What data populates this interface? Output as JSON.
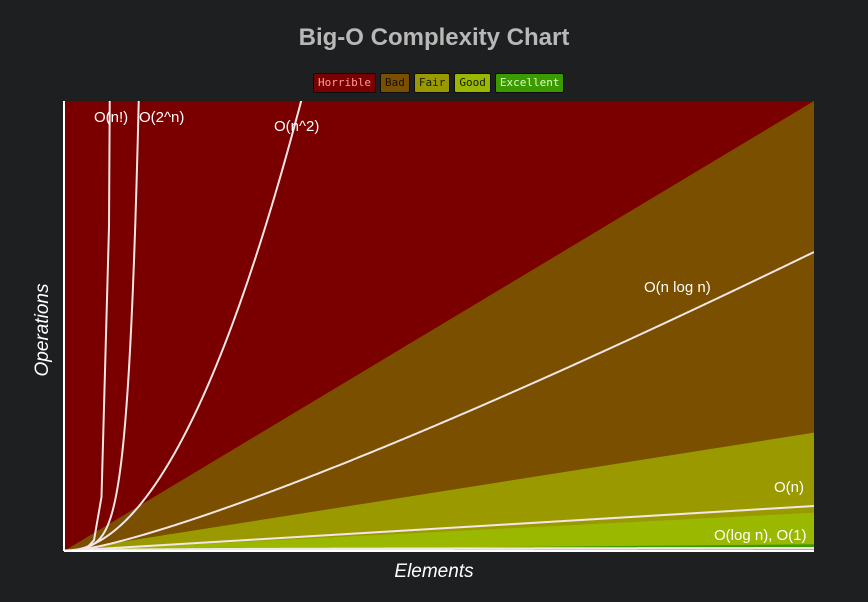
{
  "chart_data": {
    "type": "area",
    "title": "Big-O Complexity Chart",
    "xlabel": "Elements",
    "ylabel": "Operations",
    "legend": {
      "placement": "top-center",
      "items": [
        {
          "label": "Horrible",
          "color": "#7a0000",
          "text_color": "#ff9a9a"
        },
        {
          "label": "Bad",
          "color": "#7a4f00",
          "text_color": "#1a1000"
        },
        {
          "label": "Fair",
          "color": "#9a9a00",
          "text_color": "#1a1a00"
        },
        {
          "label": "Good",
          "color": "#9ab800",
          "text_color": "#1a1a00"
        },
        {
          "label": "Excellent",
          "color": "#3a9a00",
          "text_color": "#d8ffc0"
        }
      ]
    },
    "xlim": [
      0,
      100
    ],
    "ylim": [
      0,
      1000
    ],
    "grid": false,
    "regions": [
      {
        "name": "Horrible",
        "color": "#7a0000"
      },
      {
        "name": "Bad",
        "color": "#7a4f00",
        "upper_boundary": "10n",
        "upper_value_at_xmax": 1000
      },
      {
        "name": "Fair",
        "color": "#9a9a00",
        "upper_boundary": "2.6n",
        "upper_value_at_xmax": 263
      },
      {
        "name": "Good",
        "color": "#9ab800",
        "upper_boundary": "0.85n",
        "upper_value_at_xmax": 85
      },
      {
        "name": "Excellent",
        "color": "#3a9a00",
        "upper_boundary": "0.15n",
        "upper_value_at_xmax": 15
      }
    ],
    "series": [
      {
        "name": "O(n!)",
        "label": "O(n!)",
        "function": "factorial"
      },
      {
        "name": "O(2^n)",
        "label": "O(2^n)",
        "function": "exponential"
      },
      {
        "name": "O(n^2)",
        "label": "O(n^2)",
        "function": "quadratic"
      },
      {
        "name": "O(n log n)",
        "label": "O(n log n)",
        "function": "nlogn"
      },
      {
        "name": "O(n)",
        "label": "O(n)",
        "function": "linear"
      },
      {
        "name": "O(log n)",
        "label": "O(log n), O(1)",
        "function": "logarithmic"
      },
      {
        "name": "O(1)",
        "label": "",
        "function": "constant"
      }
    ],
    "curve_color": "#f2e6e6"
  }
}
